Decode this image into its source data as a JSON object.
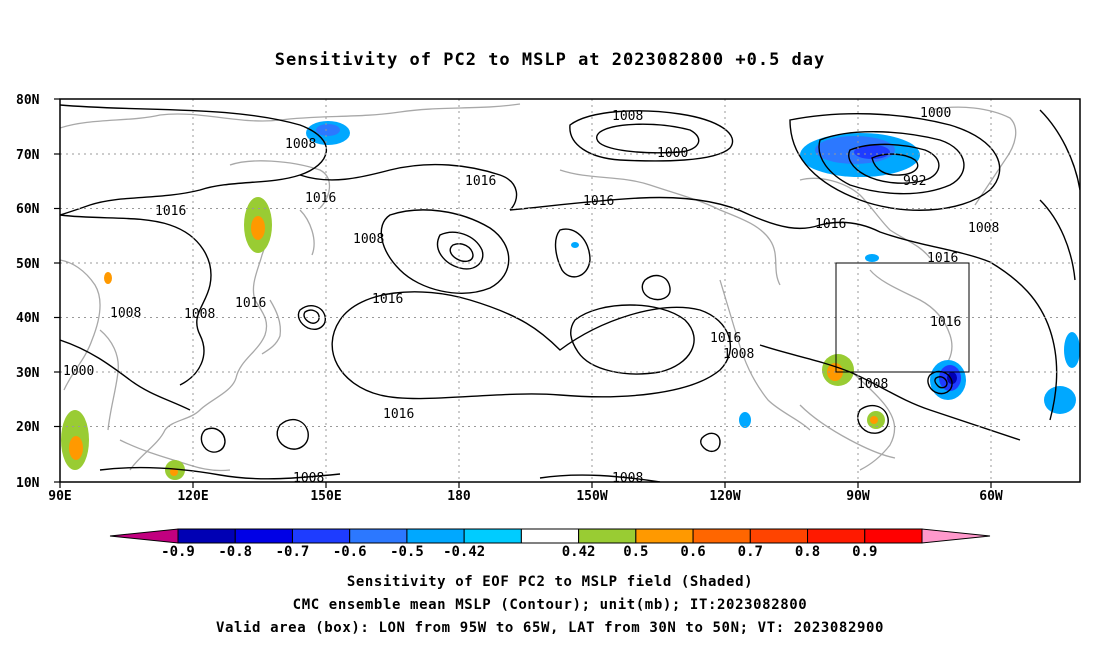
{
  "title": "Sensitivity of PC2 to MSLP at 2023082800 +0.5 day",
  "lat_labels": [
    "80N",
    "70N",
    "60N",
    "50N",
    "40N",
    "30N",
    "20N",
    "10N"
  ],
  "lon_labels": [
    "90E",
    "120E",
    "150E",
    "180",
    "150W",
    "120W",
    "90W",
    "60W"
  ],
  "contour_labels": [
    "1008",
    "1000",
    "1008",
    "1016",
    "1016",
    "992",
    "1000",
    "1016",
    "1008",
    "1016",
    "1008",
    "1016",
    "1008",
    "1016",
    "1016",
    "1016",
    "1016",
    "1008",
    "1000",
    "1016",
    "1008",
    "1008",
    "1008",
    "1008"
  ],
  "colorbar": {
    "ticks": [
      "-0.9",
      "-0.8",
      "-0.7",
      "-0.6",
      "-0.5",
      "-0.42",
      "0.42",
      "0.5",
      "0.6",
      "0.7",
      "0.8",
      "0.9"
    ],
    "colors": [
      "#c1007f",
      "#0000b4",
      "#0000e6",
      "#1e3cff",
      "#2c78ff",
      "#00a8ff",
      "#00ccff",
      "#ffffff",
      "#99cc33",
      "#ff9900",
      "#ff6600",
      "#ff4400",
      "#ff1a00",
      "#ff0000",
      "#ff99cc"
    ]
  },
  "captions": [
    "Sensitivity of EOF PC2 to MSLP field (Shaded)",
    "CMC ensemble mean MSLP (Contour); unit(mb); IT:2023082800",
    "Valid area (box): LON from 95W to 65W, LAT from 30N to 50N; VT: 2023082900"
  ],
  "valid_box": {
    "lon": [
      -95,
      -65
    ],
    "lat": [
      30,
      50
    ]
  }
}
